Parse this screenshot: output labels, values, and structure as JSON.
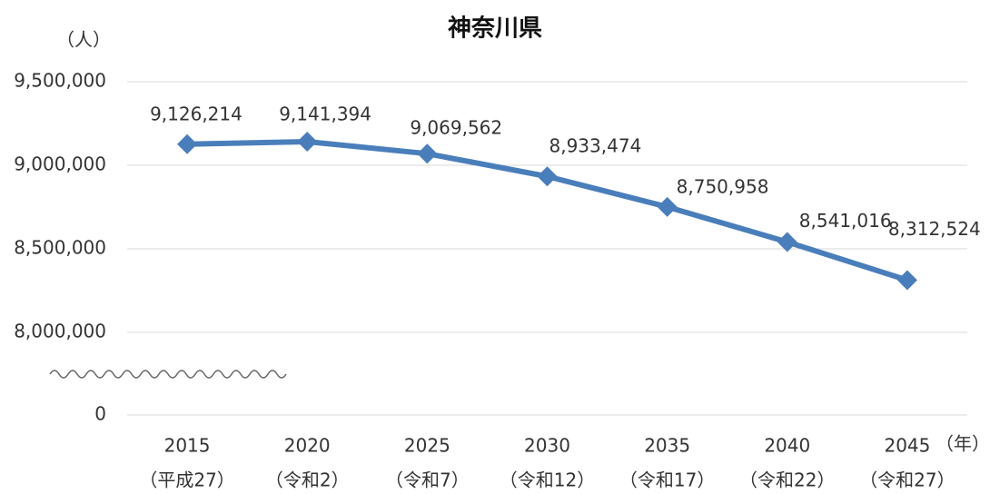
{
  "chart_data": {
    "type": "line",
    "title": "神奈川県",
    "y_label": "（人）",
    "x_label": "（年）",
    "categories": [
      "2015",
      "2020",
      "2025",
      "2030",
      "2035",
      "2040",
      "2045"
    ],
    "category_eras": [
      "（平成27）",
      "（令和2）",
      "（令和7）",
      "（令和12）",
      "（令和17）",
      "（令和22）",
      "（令和27）"
    ],
    "series": [
      {
        "name": "神奈川県",
        "color": "#4a7ebb",
        "values": [
          9126214,
          9141394,
          9069562,
          8933474,
          8750958,
          8541016,
          8312524
        ],
        "value_labels": [
          "9,126,214",
          "9,141,394",
          "9,069,562",
          "8,933,474",
          "8,750,958",
          "8,541,016",
          "8,312,524"
        ]
      }
    ],
    "ylim": [
      0,
      9500000
    ],
    "y_break": [
      0,
      8000000
    ],
    "yticks": [
      {
        "value": 0,
        "label": "0"
      },
      {
        "value": 8000000,
        "label": "8,000,000"
      },
      {
        "value": 8500000,
        "label": "8,500,000"
      },
      {
        "value": 9000000,
        "label": "9,000,000"
      },
      {
        "value": 9500000,
        "label": "9,500,000"
      }
    ],
    "grid": true
  }
}
